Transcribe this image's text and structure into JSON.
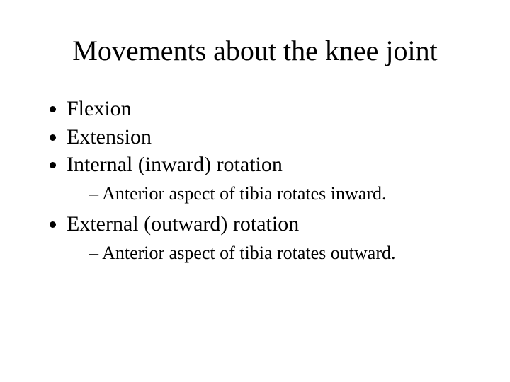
{
  "title": "Movements about the knee joint",
  "items": {
    "flexion": "Flexion",
    "extension": "Extension",
    "internal": "Internal (inward) rotation",
    "internal_sub": "Anterior aspect of tibia rotates inward.",
    "external": "External (outward) rotation",
    "external_sub": "Anterior aspect of tibia rotates outward."
  },
  "colors": {
    "background": "#ffffff",
    "text": "#000000"
  },
  "typography": {
    "family": "Times New Roman",
    "title_fontsize_pt": 40,
    "body_fontsize_pt": 30,
    "sub_fontsize_pt": 26
  }
}
